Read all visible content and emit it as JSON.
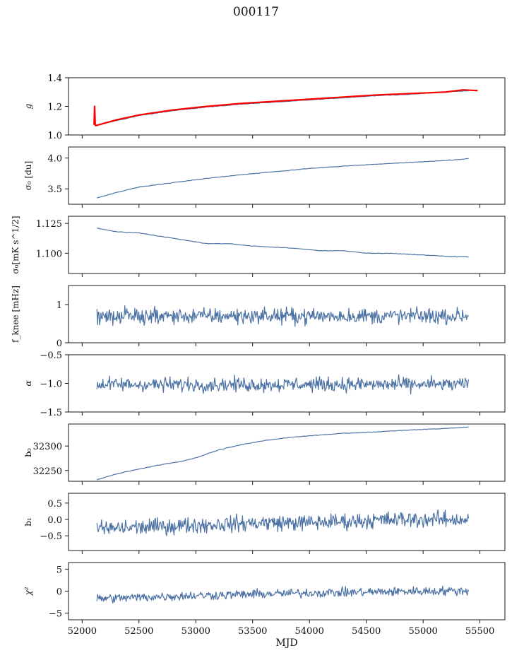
{
  "figure": {
    "title": "000117"
  },
  "colors": {
    "series": "#4c72a4",
    "overlay": "#ff0000",
    "axis": "#000000"
  },
  "chart_data": [
    {
      "id": "g",
      "type": "line",
      "ylabel_tex": "g",
      "xlim": [
        51880,
        55720
      ],
      "ylim": [
        1.0,
        1.4
      ],
      "yticks": [
        1.0,
        1.2,
        1.4
      ],
      "ytick_labels": [
        "1.0",
        "1.2",
        "1.4"
      ],
      "show_xticklabels": false,
      "series": [
        {
          "color": "#4c72a4",
          "x": [
            52110,
            52300,
            52500,
            52800,
            53100,
            53400,
            53700,
            54000,
            54300,
            54600,
            54900,
            55200,
            55400
          ],
          "y": [
            1.065,
            1.1,
            1.135,
            1.17,
            1.195,
            1.215,
            1.23,
            1.245,
            1.26,
            1.275,
            1.285,
            1.3,
            1.31
          ]
        },
        {
          "color": "#ff0000",
          "x": [
            52105,
            52110,
            52115,
            52120,
            52300,
            52500,
            52800,
            53100,
            53400,
            53700,
            54000,
            54300,
            54600,
            54900,
            55200,
            55350,
            55480
          ],
          "y": [
            1.07,
            1.2,
            1.08,
            1.065,
            1.105,
            1.14,
            1.175,
            1.2,
            1.22,
            1.235,
            1.25,
            1.265,
            1.28,
            1.29,
            1.3,
            1.315,
            1.31
          ]
        }
      ]
    },
    {
      "id": "sigma0",
      "type": "line",
      "ylabel": "σ₀ [du]",
      "xlim": [
        51880,
        55720
      ],
      "ylim": [
        3.25,
        4.18
      ],
      "yticks": [
        3.5,
        4.0
      ],
      "ytick_labels": [
        "3.5",
        "4.0"
      ],
      "show_xticklabels": false,
      "series": [
        {
          "color": "#4c72a4",
          "x": [
            52130,
            52300,
            52500,
            52800,
            53100,
            53400,
            53700,
            54000,
            54300,
            54600,
            54900,
            55200,
            55400
          ],
          "y": [
            3.35,
            3.44,
            3.53,
            3.6,
            3.67,
            3.73,
            3.78,
            3.83,
            3.87,
            3.9,
            3.93,
            3.96,
            3.99
          ]
        }
      ]
    },
    {
      "id": "sigma0_mks",
      "type": "line",
      "ylabel": "σ₀[mK s^1/2]",
      "xlim": [
        51880,
        55720
      ],
      "ylim": [
        1.083,
        1.131
      ],
      "yticks": [
        1.1,
        1.125
      ],
      "ytick_labels": [
        "1.100",
        "1.125"
      ],
      "show_xticklabels": false,
      "series": [
        {
          "color": "#4c72a4",
          "x": [
            52130,
            52300,
            52500,
            52700,
            52900,
            53100,
            53300,
            53500,
            53700,
            53900,
            54100,
            54300,
            54500,
            54700,
            54900,
            55100,
            55300,
            55400
          ],
          "y": [
            1.121,
            1.118,
            1.117,
            1.114,
            1.111,
            1.108,
            1.108,
            1.106,
            1.105,
            1.104,
            1.102,
            1.102,
            1.1,
            1.1,
            1.099,
            1.098,
            1.097,
            1.097
          ]
        }
      ]
    },
    {
      "id": "fknee",
      "type": "line",
      "ylabel": "f_knee [mHz]",
      "xlim": [
        51880,
        55720
      ],
      "ylim": [
        0,
        1.5
      ],
      "yticks": [
        0,
        1
      ],
      "ytick_labels": [
        "0",
        "1"
      ],
      "show_xticklabels": false,
      "series": [
        {
          "color": "#4c72a4",
          "x": [
            52130,
            55400
          ],
          "y": [
            0.7,
            0.7
          ],
          "noise": 0.15
        }
      ]
    },
    {
      "id": "alpha",
      "type": "line",
      "ylabel_tex": "α",
      "xlim": [
        51880,
        55720
      ],
      "ylim": [
        -1.5,
        -0.5
      ],
      "yticks": [
        -1.5,
        -1.0,
        -0.5
      ],
      "ytick_labels": [
        "−1.5",
        "−1.0",
        "−0.5"
      ],
      "show_xticklabels": false,
      "series": [
        {
          "color": "#4c72a4",
          "x": [
            52130,
            55400
          ],
          "y": [
            -1.02,
            -1.02
          ],
          "noise": 0.09
        }
      ]
    },
    {
      "id": "b0",
      "type": "line",
      "ylabel": "b₀",
      "xlim": [
        51880,
        55720
      ],
      "ylim": [
        32228,
        32345
      ],
      "yticks": [
        32250,
        32300
      ],
      "ytick_labels": [
        "32250",
        "32300"
      ],
      "show_xticklabels": false,
      "series": [
        {
          "color": "#4c72a4",
          "x": [
            52130,
            52300,
            52500,
            52700,
            52900,
            53000,
            53200,
            53400,
            53600,
            53800,
            54000,
            54300,
            54600,
            54900,
            55200,
            55400
          ],
          "y": [
            32231,
            32243,
            32253,
            32262,
            32270,
            32276,
            32292,
            32303,
            32311,
            32317,
            32321,
            32326,
            32329,
            32333,
            32336,
            32339
          ]
        }
      ]
    },
    {
      "id": "b1",
      "type": "line",
      "ylabel": "b₁",
      "xlim": [
        51880,
        55720
      ],
      "ylim": [
        -0.95,
        0.8
      ],
      "yticks": [
        -0.5,
        0.0,
        0.5
      ],
      "ytick_labels": [
        "−0.5",
        "0.0",
        "0.5"
      ],
      "show_xticklabels": false,
      "series": [
        {
          "color": "#4c72a4",
          "x": [
            52130,
            52400,
            52800,
            53200,
            53600,
            54000,
            54400,
            54800,
            55200,
            55400
          ],
          "y": [
            -0.3,
            -0.25,
            -0.2,
            -0.15,
            -0.1,
            -0.1,
            -0.05,
            0.0,
            0.0,
            0.0
          ],
          "noise": 0.18
        }
      ]
    },
    {
      "id": "chi2",
      "type": "line",
      "ylabel_tex": "χ²",
      "xlim": [
        51880,
        55720
      ],
      "ylim": [
        -6.5,
        6.5
      ],
      "yticks": [
        -5,
        0,
        5
      ],
      "ytick_labels": [
        "−5",
        "0",
        "5"
      ],
      "show_xticklabels": true,
      "xticks": [
        52000,
        52500,
        53000,
        53500,
        54000,
        54500,
        55000,
        55500
      ],
      "xtick_labels": [
        "52000",
        "52500",
        "53000",
        "53500",
        "54000",
        "54500",
        "55000",
        "55500"
      ],
      "xlabel": "MJD",
      "series": [
        {
          "color": "#4c72a4",
          "x": [
            52130,
            52500,
            53000,
            53500,
            54000,
            54500,
            55000,
            55400
          ],
          "y": [
            -1.7,
            -1.4,
            -1.0,
            -0.7,
            -0.4,
            -0.2,
            0.0,
            0.1
          ],
          "noise": 0.75
        }
      ]
    }
  ]
}
